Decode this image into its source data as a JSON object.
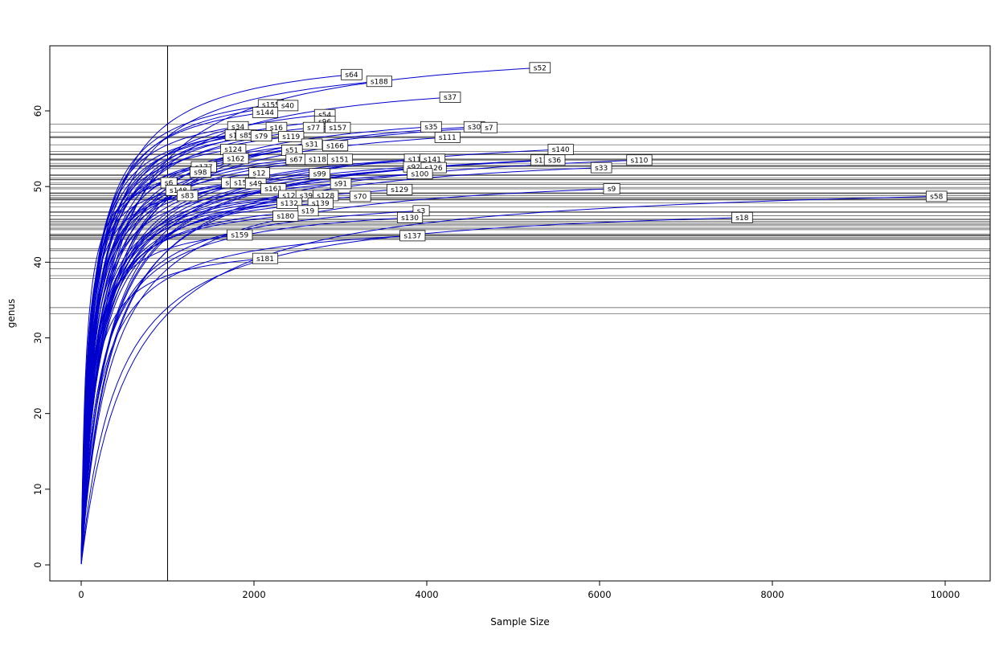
{
  "chart_data": {
    "type": "line",
    "title": "",
    "xlabel": "Sample Size",
    "ylabel": "genus",
    "xlim": [
      0,
      10500
    ],
    "ylim": [
      0,
      67
    ],
    "x_ticks": [
      0,
      2000,
      4000,
      6000,
      8000,
      10000
    ],
    "y_ticks": [
      0,
      10,
      20,
      30,
      40,
      50,
      60
    ],
    "grid": false,
    "legend_position": "none",
    "reference_vline_x": 1000,
    "curve_color": "#0000CC",
    "hline_color": "#4D4D4D",
    "frame_color": "#000000",
    "series": [
      {
        "label": "s52",
        "x": 5310,
        "y": 65.7
      },
      {
        "label": "s64",
        "x": 3130,
        "y": 64.8
      },
      {
        "label": "s188",
        "x": 3450,
        "y": 63.9
      },
      {
        "label": "s37",
        "x": 4270,
        "y": 61.8
      },
      {
        "label": "s155",
        "x": 2195,
        "y": 60.8
      },
      {
        "label": "s40",
        "x": 2390,
        "y": 60.7
      },
      {
        "label": "s144",
        "x": 2130,
        "y": 59.8
      },
      {
        "label": "s54",
        "x": 2820,
        "y": 59.5
      },
      {
        "label": "s96",
        "x": 2820,
        "y": 58.6
      },
      {
        "label": "s34",
        "x": 1815,
        "y": 57.9
      },
      {
        "label": "s16",
        "x": 2260,
        "y": 57.8
      },
      {
        "label": "s77",
        "x": 2690,
        "y": 57.8
      },
      {
        "label": "s157",
        "x": 2970,
        "y": 57.8
      },
      {
        "label": "s35",
        "x": 4050,
        "y": 57.9
      },
      {
        "label": "s30",
        "x": 4550,
        "y": 57.9
      },
      {
        "label": "s7",
        "x": 4720,
        "y": 57.8
      },
      {
        "label": "s1",
        "x": 1760,
        "y": 56.8
      },
      {
        "label": "s85",
        "x": 1910,
        "y": 56.8
      },
      {
        "label": "s79",
        "x": 2085,
        "y": 56.7
      },
      {
        "label": "s119",
        "x": 2430,
        "y": 56.6
      },
      {
        "label": "s111",
        "x": 4240,
        "y": 56.5
      },
      {
        "label": "s31",
        "x": 2670,
        "y": 55.6
      },
      {
        "label": "s166",
        "x": 2940,
        "y": 55.4
      },
      {
        "label": "s124",
        "x": 1760,
        "y": 54.9
      },
      {
        "label": "s51",
        "x": 2440,
        "y": 54.8
      },
      {
        "label": "s140",
        "x": 5550,
        "y": 54.9
      },
      {
        "label": "s162",
        "x": 1790,
        "y": 53.7
      },
      {
        "label": "s67",
        "x": 2490,
        "y": 53.6
      },
      {
        "label": "s118",
        "x": 2735,
        "y": 53.6
      },
      {
        "label": "s151",
        "x": 2995,
        "y": 53.6
      },
      {
        "label": "s11",
        "x": 3860,
        "y": 53.6
      },
      {
        "label": "s141",
        "x": 4065,
        "y": 53.6
      },
      {
        "label": "s136",
        "x": 5350,
        "y": 53.5
      },
      {
        "label": "s36",
        "x": 5480,
        "y": 53.5
      },
      {
        "label": "s110",
        "x": 6460,
        "y": 53.5
      },
      {
        "label": "s177",
        "x": 1420,
        "y": 52.6
      },
      {
        "label": "s92",
        "x": 3850,
        "y": 52.6
      },
      {
        "label": "s126",
        "x": 4080,
        "y": 52.5
      },
      {
        "label": "s33",
        "x": 6020,
        "y": 52.5
      },
      {
        "label": "s98",
        "x": 1380,
        "y": 51.9
      },
      {
        "label": "s12",
        "x": 2060,
        "y": 51.8
      },
      {
        "label": "s99",
        "x": 2760,
        "y": 51.7
      },
      {
        "label": "s100",
        "x": 3920,
        "y": 51.7
      },
      {
        "label": "s6",
        "x": 1015,
        "y": 50.5
      },
      {
        "label": "s102",
        "x": 1770,
        "y": 50.5
      },
      {
        "label": "s156",
        "x": 1870,
        "y": 50.5
      },
      {
        "label": "s49",
        "x": 2020,
        "y": 50.4
      },
      {
        "label": "s91",
        "x": 3005,
        "y": 50.4
      },
      {
        "label": "s148",
        "x": 1125,
        "y": 49.5
      },
      {
        "label": "s161",
        "x": 2225,
        "y": 49.7
      },
      {
        "label": "s129",
        "x": 3685,
        "y": 49.6
      },
      {
        "label": "s9",
        "x": 6140,
        "y": 49.7
      },
      {
        "label": "s83",
        "x": 1230,
        "y": 48.8
      },
      {
        "label": "s122",
        "x": 2430,
        "y": 48.8
      },
      {
        "label": "s39",
        "x": 2605,
        "y": 48.8
      },
      {
        "label": "s128",
        "x": 2830,
        "y": 48.8
      },
      {
        "label": "s70",
        "x": 3230,
        "y": 48.7
      },
      {
        "label": "s58",
        "x": 9900,
        "y": 48.7
      },
      {
        "label": "s132",
        "x": 2410,
        "y": 47.8
      },
      {
        "label": "s139",
        "x": 2770,
        "y": 47.8
      },
      {
        "label": "s19",
        "x": 2625,
        "y": 46.8
      },
      {
        "label": "s3",
        "x": 3935,
        "y": 46.8
      },
      {
        "label": "s180",
        "x": 2365,
        "y": 46.1
      },
      {
        "label": "s130",
        "x": 3805,
        "y": 45.9
      },
      {
        "label": "s18",
        "x": 7650,
        "y": 45.9
      },
      {
        "label": "s159",
        "x": 1835,
        "y": 43.6
      },
      {
        "label": "s137",
        "x": 3835,
        "y": 43.5
      },
      {
        "label": "s181",
        "x": 2130,
        "y": 40.5
      }
    ]
  }
}
